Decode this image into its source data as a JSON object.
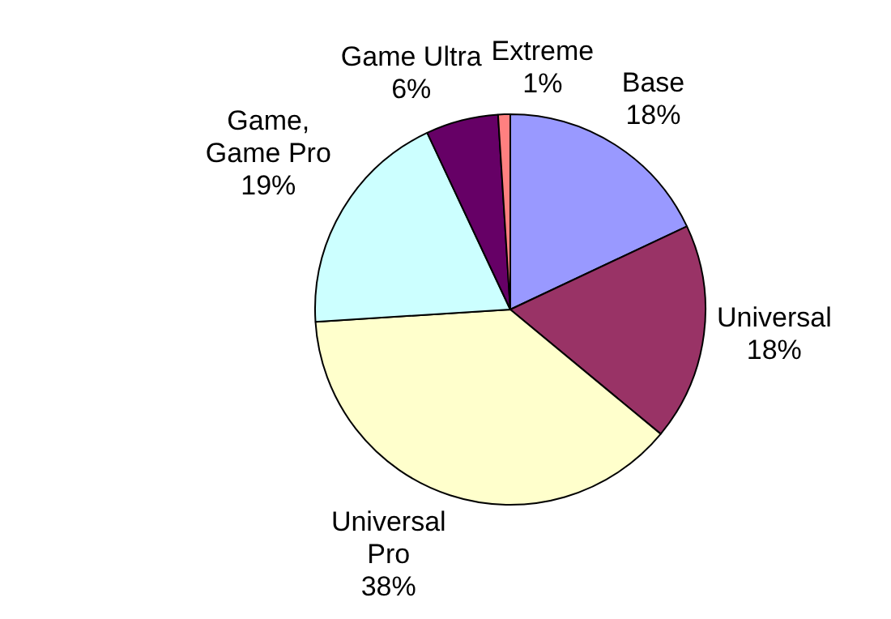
{
  "chart_data": {
    "type": "pie",
    "categories": [
      "Base",
      "Universal",
      "Universal Pro",
      "Game, Game Pro",
      "Game Ultra",
      "Extreme"
    ],
    "values": [
      18,
      18,
      38,
      19,
      6,
      1
    ],
    "value_labels": [
      "18%",
      "18%",
      "38%",
      "19%",
      "6%",
      "1%"
    ],
    "colors": [
      "#9999ff",
      "#993366",
      "#ffffcc",
      "#ccffff",
      "#660066",
      "#ff8080"
    ],
    "legend": false
  }
}
